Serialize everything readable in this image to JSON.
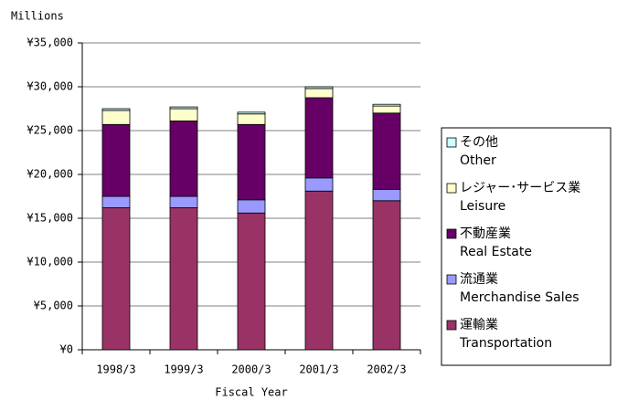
{
  "chart_data": {
    "type": "stacked-bar",
    "y_unit": "Millions",
    "x_label": "Fiscal Year",
    "categories": [
      "1998/3",
      "1999/3",
      "2000/3",
      "2001/3",
      "2002/3"
    ],
    "series": [
      {
        "name": "運輸業",
        "subname": "Transportation",
        "color": "#993366",
        "values": [
          16200,
          16200,
          15600,
          18100,
          17000
        ]
      },
      {
        "name": "流通業",
        "subname": "Merchandise Sales",
        "color": "#9999ff",
        "values": [
          1300,
          1300,
          1500,
          1500,
          1300
        ]
      },
      {
        "name": "不動産業",
        "subname": "Real Estate",
        "color": "#660066",
        "values": [
          8200,
          8600,
          8600,
          9150,
          8700
        ]
      },
      {
        "name": "レジャー･サービス業",
        "subname": "Leisure",
        "color": "#ffffcc",
        "values": [
          1600,
          1400,
          1200,
          1050,
          800
        ]
      },
      {
        "name": "その他",
        "subname": "Other",
        "color": "#ccffff",
        "values": [
          200,
          200,
          200,
          200,
          200
        ]
      }
    ],
    "ylim": [
      0,
      35000
    ],
    "yticks": [
      {
        "value": 0,
        "label": "¥0"
      },
      {
        "value": 5000,
        "label": "¥5,000"
      },
      {
        "value": 10000,
        "label": "¥10,000"
      },
      {
        "value": 15000,
        "label": "¥15,000"
      },
      {
        "value": 20000,
        "label": "¥20,000"
      },
      {
        "value": 25000,
        "label": "¥25,000"
      },
      {
        "value": 30000,
        "label": "¥30,000"
      },
      {
        "value": 35000,
        "label": "¥35,000"
      }
    ],
    "grid": true,
    "legend": "right"
  }
}
